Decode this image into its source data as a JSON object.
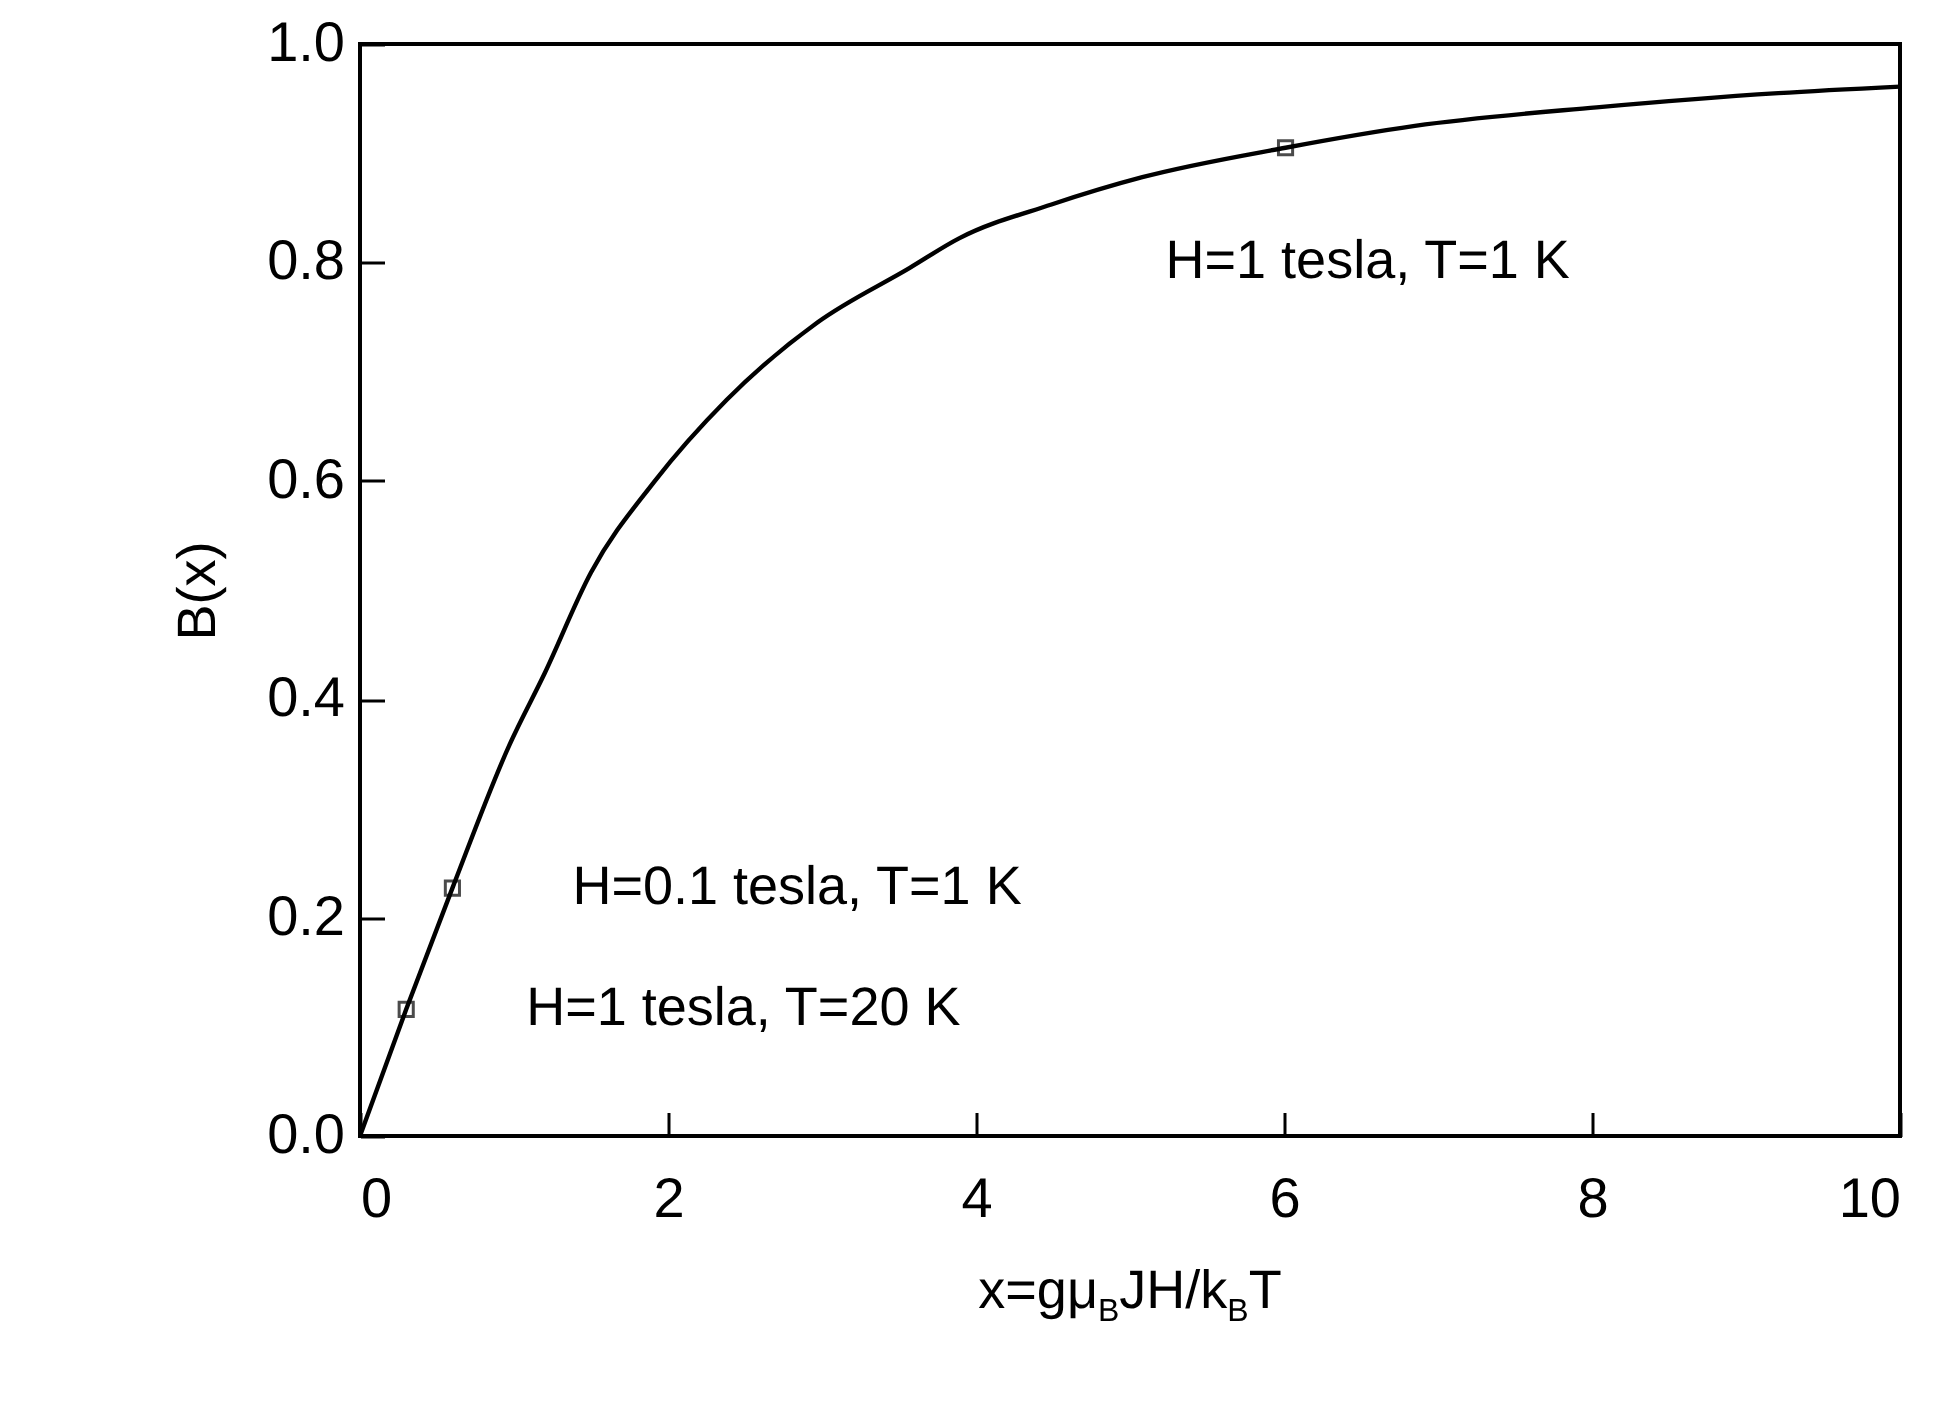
{
  "chart_data": {
    "type": "line",
    "xlabel": "x=gμ$_{B}$JH/k$_{B}$T",
    "ylabel": "B(x)",
    "xlim": [
      0,
      10
    ],
    "ylim": [
      0,
      1.0
    ],
    "xticks": [
      0,
      2,
      4,
      6,
      8,
      10
    ],
    "yticks": [
      {
        "value": 0,
        "label": "0.0"
      },
      {
        "value": 0.2,
        "label": "0.2"
      },
      {
        "value": 0.4,
        "label": "0.4"
      },
      {
        "value": 0.6,
        "label": "0.6"
      },
      {
        "value": 0.8,
        "label": "0.8"
      },
      {
        "value": 1.0,
        "label": "1.0"
      }
    ],
    "grid": false,
    "series": [
      {
        "color": "#000000",
        "marker": "none",
        "x": [
          0,
          0.3,
          0.6,
          0.97,
          1.2,
          1.5,
          1.91,
          2.38,
          2.97,
          3.57,
          3.89,
          4.49,
          5.08,
          6.01,
          6.85,
          8.03,
          9.21,
          10
        ],
        "values": [
          0,
          0.116,
          0.227,
          0.358,
          0.424,
          0.516,
          0.599,
          0.674,
          0.745,
          0.795,
          0.822,
          0.853,
          0.878,
          0.905,
          0.925,
          0.942,
          0.955,
          0.961
        ]
      },
      {
        "type": "scatter",
        "color": "#000000",
        "marker": "square",
        "x": [
          0.3,
          0.6,
          6.01
        ],
        "values": [
          0.116,
          0.227,
          0.905
        ]
      }
    ],
    "annotations": [
      {
        "text": "H=1 tesla, T=20 K",
        "x": 0.3,
        "y": 0.116
      },
      {
        "text": "H=0.1 tesla, T=1 K",
        "x": 0.6,
        "y": 0.227
      },
      {
        "text": "H=1 tesla, T=1 K",
        "x": 6.01,
        "y": 0.905
      }
    ]
  }
}
